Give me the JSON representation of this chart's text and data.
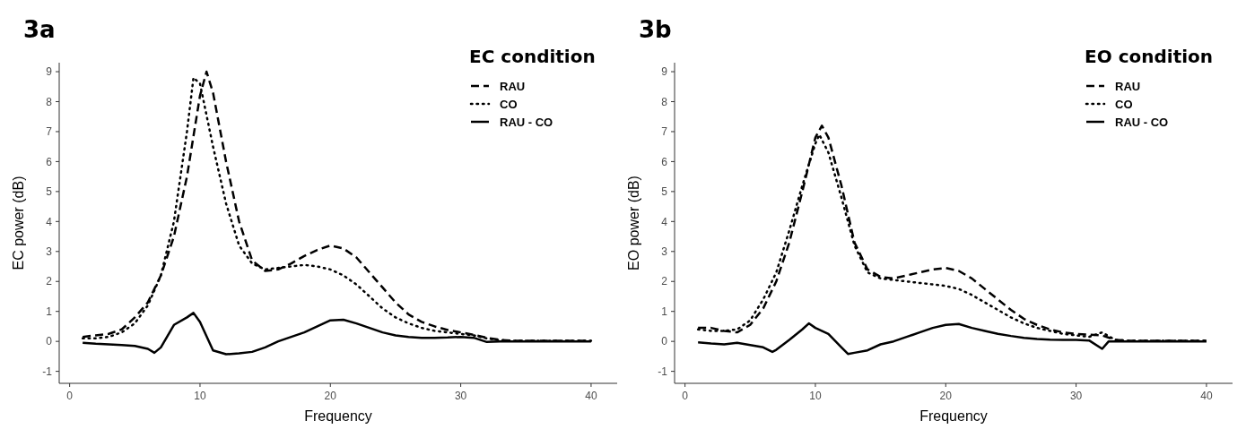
{
  "chart_data": [
    {
      "type": "line",
      "title": "3a",
      "xlabel": "Frequency",
      "ylabel": "EC power (dB)",
      "legend_title": "EC condition",
      "legend": "top right",
      "xlim": [
        -0.8,
        42
      ],
      "xticks": [
        0,
        10,
        20,
        30,
        40
      ],
      "ylim": [
        -1.4,
        9.3
      ],
      "yticks": [
        -1,
        0,
        1,
        2,
        3,
        4,
        5,
        6,
        7,
        8,
        9
      ],
      "series": [
        {
          "name": "RAU",
          "color": "#000000",
          "line_style": "dashed",
          "x": [
            1,
            2,
            3,
            4,
            5,
            6,
            7,
            8,
            9,
            10,
            10.5,
            11,
            12,
            13,
            14,
            15,
            16,
            17,
            18,
            19,
            20,
            21,
            22,
            23,
            24,
            25,
            26,
            27,
            28,
            29,
            30,
            31,
            32,
            33,
            34,
            36,
            38,
            40
          ],
          "values": [
            0.15,
            0.2,
            0.25,
            0.4,
            0.8,
            1.3,
            2.2,
            3.5,
            5.5,
            8.2,
            9.0,
            8.3,
            6,
            4,
            2.7,
            2.35,
            2.4,
            2.6,
            2.85,
            3.05,
            3.2,
            3.1,
            2.8,
            2.3,
            1.8,
            1.3,
            0.9,
            0.65,
            0.5,
            0.38,
            0.3,
            0.22,
            0.12,
            0.05,
            0.02,
            0.02,
            0.02,
            0.02
          ]
        },
        {
          "name": "CO",
          "color": "#000000",
          "line_style": "dotted",
          "x": [
            1,
            2,
            3,
            4,
            5,
            6,
            7,
            8,
            9,
            9.5,
            10,
            11,
            12,
            13,
            14,
            15,
            16,
            17,
            18,
            19,
            20,
            21,
            22,
            23,
            24,
            25,
            26,
            27,
            28,
            29,
            30,
            31,
            32,
            33,
            34,
            36,
            38,
            40
          ],
          "values": [
            0.1,
            0.1,
            0.15,
            0.3,
            0.6,
            1.2,
            2.2,
            4,
            7,
            8.8,
            8.6,
            6.5,
            4.6,
            3.2,
            2.6,
            2.4,
            2.45,
            2.5,
            2.55,
            2.5,
            2.4,
            2.2,
            1.9,
            1.5,
            1.1,
            0.8,
            0.6,
            0.45,
            0.35,
            0.3,
            0.25,
            0.2,
            0.1,
            0.04,
            0.02,
            0.02,
            0.02,
            0.02
          ]
        },
        {
          "name": "RAU - CO",
          "color": "#000000",
          "line_style": "solid",
          "x": [
            1,
            2,
            3,
            4,
            5,
            6,
            6.5,
            7,
            8,
            9,
            9.5,
            10,
            11,
            12,
            13,
            14,
            15,
            16,
            17,
            18,
            19,
            20,
            21,
            22,
            23,
            24,
            25,
            26,
            27,
            28,
            29,
            30,
            31,
            32,
            33,
            34,
            36,
            38,
            40
          ],
          "values": [
            -0.05,
            -0.08,
            -0.1,
            -0.12,
            -0.15,
            -0.25,
            -0.38,
            -0.2,
            0.55,
            0.8,
            0.95,
            0.65,
            -0.3,
            -0.43,
            -0.4,
            -0.35,
            -0.2,
            0,
            0.15,
            0.3,
            0.5,
            0.7,
            0.72,
            0.6,
            0.45,
            0.3,
            0.2,
            0.15,
            0.12,
            0.12,
            0.13,
            0.15,
            0.12,
            -0.02,
            0,
            0,
            0,
            0,
            0
          ]
        }
      ]
    },
    {
      "type": "line",
      "title": "3b",
      "xlabel": "Frequency",
      "ylabel": "EO power (dB)",
      "legend_title": "EO condition",
      "legend": "top right",
      "xlim": [
        -0.8,
        42
      ],
      "xticks": [
        0,
        10,
        20,
        30,
        40
      ],
      "ylim": [
        -1.4,
        9.3
      ],
      "yticks": [
        -1,
        0,
        1,
        2,
        3,
        4,
        5,
        6,
        7,
        8,
        9
      ],
      "series": [
        {
          "name": "RAU",
          "color": "#000000",
          "line_style": "dashed",
          "x": [
            1,
            2,
            3,
            4,
            5,
            6,
            7,
            8,
            9,
            10,
            10.5,
            11,
            12,
            13,
            14,
            15,
            16,
            17,
            18,
            19,
            20,
            21,
            22,
            23,
            24,
            25,
            26,
            27,
            28,
            29,
            30,
            31,
            32,
            33,
            34,
            36,
            38,
            40
          ],
          "values": [
            0.45,
            0.45,
            0.35,
            0.3,
            0.55,
            1.1,
            2,
            3.3,
            5,
            6.8,
            7.2,
            6.8,
            5.2,
            3.3,
            2.4,
            2.15,
            2.1,
            2.2,
            2.3,
            2.4,
            2.45,
            2.35,
            2.1,
            1.75,
            1.4,
            1.05,
            0.75,
            0.55,
            0.4,
            0.3,
            0.25,
            0.22,
            0.2,
            0.05,
            0.02,
            0.02,
            0.02,
            0.02
          ]
        },
        {
          "name": "CO",
          "color": "#000000",
          "line_style": "dotted",
          "x": [
            1,
            2,
            3,
            4,
            5,
            6,
            7,
            8,
            9,
            10,
            10.3,
            11,
            12,
            13,
            14,
            15,
            16,
            17,
            18,
            19,
            20,
            21,
            22,
            23,
            24,
            25,
            26,
            27,
            28,
            29,
            30,
            31,
            32,
            33,
            34,
            36,
            38,
            40
          ],
          "values": [
            0.4,
            0.35,
            0.35,
            0.4,
            0.7,
            1.4,
            2.3,
            3.7,
            5.2,
            6.6,
            6.9,
            6.3,
            4.8,
            3.2,
            2.3,
            2.1,
            2.05,
            2.0,
            1.95,
            1.9,
            1.85,
            1.75,
            1.55,
            1.3,
            1.05,
            0.8,
            0.6,
            0.45,
            0.35,
            0.25,
            0.2,
            0.15,
            0.3,
            0.05,
            0.02,
            0.02,
            0.02,
            0.02
          ]
        },
        {
          "name": "RAU - CO",
          "color": "#000000",
          "line_style": "solid",
          "x": [
            1,
            2,
            3,
            4,
            5,
            6,
            6.7,
            7,
            8,
            9,
            9.5,
            10,
            11,
            12,
            12.5,
            13,
            14,
            15,
            16,
            17,
            18,
            19,
            20,
            21,
            22,
            23,
            24,
            25,
            26,
            27,
            28,
            29,
            30,
            31,
            32,
            32.5,
            33,
            34,
            36,
            38,
            40
          ],
          "values": [
            -0.03,
            -0.07,
            -0.1,
            -0.05,
            -0.12,
            -0.2,
            -0.35,
            -0.28,
            0.05,
            0.4,
            0.6,
            0.45,
            0.25,
            -0.2,
            -0.42,
            -0.38,
            -0.3,
            -0.1,
            0,
            0.15,
            0.3,
            0.45,
            0.55,
            0.58,
            0.45,
            0.35,
            0.25,
            0.18,
            0.12,
            0.08,
            0.06,
            0.05,
            0.05,
            0.03,
            -0.25,
            0,
            0,
            0,
            0,
            0,
            0
          ]
        }
      ]
    }
  ]
}
